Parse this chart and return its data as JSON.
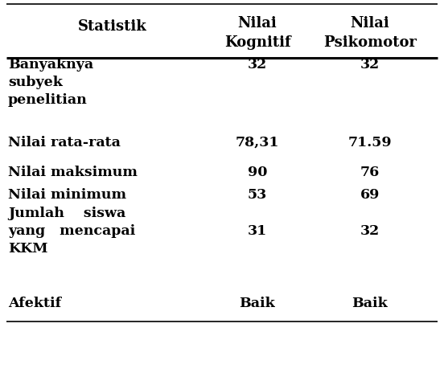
{
  "header_col1": "Statistik",
  "header_col2_line1": "Nilai",
  "header_col2_line2": "Kognitif",
  "header_col3_line1": "Nilai",
  "header_col3_line2": "Psikomotor",
  "rows": [
    {
      "label_lines": [
        "Banyaknya",
        "subyek",
        "penelitian"
      ],
      "col2": "32",
      "col3": "32",
      "val_line": 1
    },
    {
      "label_lines": [
        "Nilai rata-rata"
      ],
      "col2": "78,31",
      "col3": "71.59",
      "val_line": 1
    },
    {
      "label_lines": [
        "Nilai maksimum"
      ],
      "col2": "90",
      "col3": "76",
      "val_line": 1
    },
    {
      "label_lines": [
        "Nilai minimum"
      ],
      "col2": "53",
      "col3": "69",
      "val_line": 1
    },
    {
      "label_lines": [
        "Jumlah    siswa",
        "yang   mencapai",
        "KKM"
      ],
      "col2": "31",
      "col3": "32",
      "val_line": 2
    },
    {
      "label_lines": [
        "Afektif"
      ],
      "col2": "Baik",
      "col3": "Baik",
      "val_line": 1
    }
  ],
  "bg_color": "#ffffff",
  "text_color": "#000000",
  "font_size": 12.5,
  "header_font_size": 13.0,
  "fig_width": 5.52,
  "fig_height": 4.79,
  "dpi": 100
}
